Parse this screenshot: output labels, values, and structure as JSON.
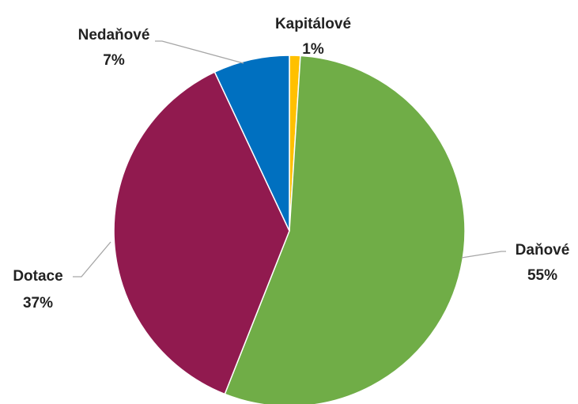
{
  "chart_data": {
    "type": "pie",
    "categories": [
      "Daňové",
      "Dotace",
      "Nedaňové",
      "Kapitálové"
    ],
    "values": [
      55,
      37,
      7,
      1
    ],
    "value_labels": [
      "55%",
      "37%",
      "7%",
      "1%"
    ],
    "colors": [
      "#70ad47",
      "#911a4f",
      "#0070c0",
      "#ffc000"
    ],
    "slice_order": [
      "Kapitálové",
      "Daňové",
      "Dotace",
      "Nedaňové"
    ],
    "start": "top, clockwise",
    "legend": "none",
    "data_labels": "outside with leader lines"
  }
}
